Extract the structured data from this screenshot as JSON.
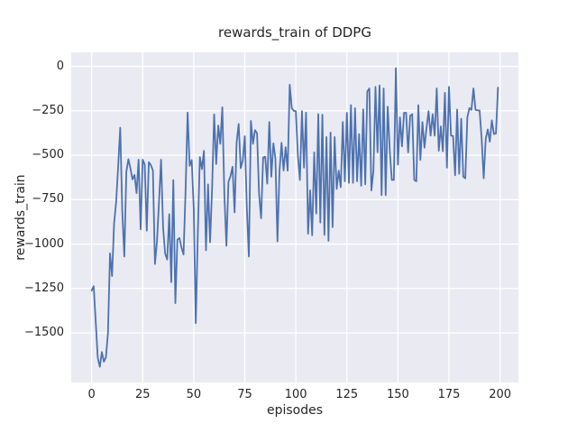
{
  "chart_data": {
    "type": "line",
    "title": "rewards_train of DDPG",
    "xlabel": "episodes",
    "ylabel": "rewards_train",
    "x_ticks": [
      0,
      25,
      50,
      75,
      100,
      125,
      150,
      175,
      200
    ],
    "y_ticks": [
      0,
      -250,
      -500,
      -750,
      -1000,
      -1250,
      -1500
    ],
    "xlim": [
      -10,
      209
    ],
    "ylim": [
      -1779,
      79
    ],
    "grid": true,
    "legend_position": "none",
    "plot_background": "#EAEAF2",
    "grid_color": "#FFFFFF",
    "text_color": "#262626",
    "series": [
      {
        "name": "rewards_train",
        "color": "#4C72B0",
        "x_is_index": true,
        "x_range": [
          0,
          199
        ],
        "values": [
          -1262,
          -1237,
          -1438,
          -1640,
          -1691,
          -1608,
          -1662,
          -1636,
          -1500,
          -1052,
          -1180,
          -883,
          -764,
          -560,
          -345,
          -815,
          -1070,
          -593,
          -522,
          -575,
          -636,
          -611,
          -713,
          -525,
          -917,
          -525,
          -551,
          -925,
          -539,
          -555,
          -585,
          -1112,
          -985,
          -760,
          -525,
          -908,
          -1053,
          -1087,
          -832,
          -1214,
          -640,
          -1333,
          -976,
          -966,
          -1020,
          -1059,
          -700,
          -260,
          -560,
          -527,
          -800,
          -1445,
          -939,
          -510,
          -578,
          -475,
          -1035,
          -664,
          -990,
          -685,
          -270,
          -550,
          -333,
          -436,
          -230,
          -720,
          -1010,
          -650,
          -618,
          -565,
          -822,
          -428,
          -324,
          -573,
          -530,
          -393,
          -796,
          -1070,
          -307,
          -436,
          -359,
          -376,
          -719,
          -855,
          -513,
          -508,
          -660,
          -313,
          -621,
          -433,
          -519,
          -985,
          -590,
          -430,
          -586,
          -455,
          -587,
          -103,
          -235,
          -250,
          -252,
          -501,
          -639,
          -252,
          -570,
          -260,
          -942,
          -697,
          -951,
          -484,
          -828,
          -269,
          -879,
          -272,
          -948,
          -398,
          -982,
          -372,
          -905,
          -398,
          -690,
          -587,
          -680,
          -313,
          -647,
          -261,
          -656,
          -218,
          -656,
          -235,
          -647,
          -381,
          -672,
          -242,
          -664,
          -141,
          -124,
          -698,
          -587,
          -115,
          -484,
          -107,
          -725,
          -124,
          -725,
          -227,
          -474,
          -639,
          -639,
          -10,
          -553,
          -287,
          -450,
          -261,
          -261,
          -484,
          -278,
          -269,
          -639,
          -647,
          -218,
          -527,
          -313,
          -458,
          -347,
          -252,
          -390,
          -269,
          -390,
          -124,
          -475,
          -338,
          -478,
          -149,
          -570,
          -115,
          -390,
          -392,
          -613,
          -243,
          -604,
          -295,
          -621,
          -630,
          -287,
          -235,
          -245,
          -124,
          -245,
          -248,
          -248,
          -407,
          -630,
          -407,
          -355,
          -424,
          -304,
          -381,
          -378,
          -120
        ]
      }
    ]
  }
}
